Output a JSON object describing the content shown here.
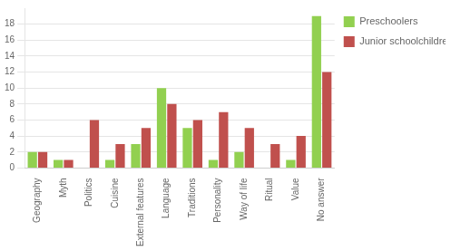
{
  "chart_data": {
    "type": "bar",
    "categories": [
      "Geography",
      "Myth",
      "Politics",
      "Cuisine",
      "External features",
      "Language",
      "Traditions",
      "Personality",
      "Way of life",
      "Ritual",
      "Value",
      "No answer"
    ],
    "series": [
      {
        "name": "Preschoolers",
        "color": "#92d050",
        "values": [
          2,
          1,
          0,
          1,
          3,
          10,
          5,
          1,
          2,
          0,
          1,
          19
        ]
      },
      {
        "name": "Junior schoolchildren",
        "color": "#c0504d",
        "values": [
          2,
          1,
          6,
          3,
          5,
          8,
          6,
          7,
          5,
          3,
          4,
          12
        ]
      }
    ],
    "ylim": [
      0,
      20
    ],
    "yticks": [
      0,
      2,
      4,
      6,
      8,
      10,
      12,
      14,
      16,
      18
    ],
    "grid": true,
    "legend": "right"
  }
}
